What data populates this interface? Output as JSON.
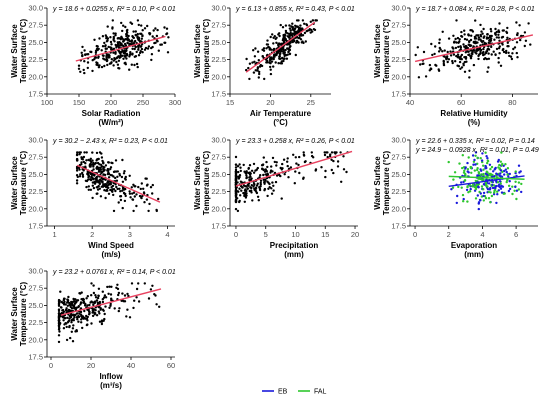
{
  "chart_data": [
    {
      "type": "scatter",
      "xlabel": [
        "Solar Radiation",
        "(W/m²)"
      ],
      "ylabel": [
        "Water Surface",
        "Temperature (°C)"
      ],
      "xlim": [
        100,
        300
      ],
      "xticks": [
        "100",
        "150",
        "200",
        "250",
        "300"
      ],
      "xtick_values": [
        100,
        150,
        200,
        250,
        300
      ],
      "ylim": [
        17.5,
        30
      ],
      "yticks": [
        "17.5",
        "20.0",
        "22.5",
        "25.0",
        "27.5",
        "30.0"
      ],
      "ytick_values": [
        17.5,
        20,
        22.5,
        25,
        27.5,
        30
      ],
      "annotations": [
        "y = 18.6 + 0.0255 x, R² = 0.10, P < 0.01"
      ],
      "annotation_colors": [
        "#000000"
      ],
      "fits": [
        {
          "intercept": 18.6,
          "slope": 0.0255,
          "color": "#e8415f",
          "x_range": [
            145,
            285
          ]
        }
      ],
      "cloud": {
        "x_range": [
          150,
          290
        ],
        "x_center": 215,
        "spread": 1.4,
        "n": 330
      }
    },
    {
      "type": "scatter",
      "xlabel": [
        "Air Temperature",
        "(°C)"
      ],
      "ylabel": [
        "Water Surface",
        "Temperature (°C)"
      ],
      "xlim": [
        15,
        27.5
      ],
      "xticks": [
        "15",
        "20",
        "25"
      ],
      "xtick_values": [
        15,
        20,
        25
      ],
      "ylim": [
        17.5,
        30
      ],
      "yticks": [
        "17.5",
        "20.0",
        "22.5",
        "25.0",
        "27.5",
        "30.0"
      ],
      "ytick_values": [
        17.5,
        20,
        22.5,
        25,
        27.5,
        30
      ],
      "annotations": [
        "y = 6.13 + 0.855 x, R² = 0.43, P < 0.01"
      ],
      "annotation_colors": [
        "#000000"
      ],
      "fits": [
        {
          "intercept": 6.13,
          "slope": 0.855,
          "color": "#e8415f",
          "x_range": [
            17,
            25.5
          ]
        }
      ],
      "cloud": {
        "x_range": [
          17,
          26
        ],
        "x_center": 22,
        "spread": 1.1,
        "n": 330
      }
    },
    {
      "type": "scatter",
      "xlabel": [
        "Relative Humidity",
        "(%)"
      ],
      "ylabel": [
        "Water Surface",
        "Temperature (°C)"
      ],
      "xlim": [
        40,
        90
      ],
      "xticks": [
        "40",
        "60",
        "80"
      ],
      "xtick_values": [
        40,
        60,
        80
      ],
      "ylim": [
        17.5,
        30
      ],
      "yticks": [
        "17.5",
        "20.0",
        "22.5",
        "25.0",
        "27.5",
        "30.0"
      ],
      "ytick_values": [
        17.5,
        20,
        22.5,
        25,
        27.5,
        30
      ],
      "annotations": [
        "y = 18.7 + 0.084 x, R² = 0.28, P < 0.01"
      ],
      "annotation_colors": [
        "#000000"
      ],
      "fits": [
        {
          "intercept": 18.7,
          "slope": 0.084,
          "color": "#e8415f",
          "x_range": [
            42,
            88
          ]
        }
      ],
      "cloud": {
        "x_range": [
          42,
          88
        ],
        "x_center": 68,
        "spread": 1.4,
        "n": 330
      }
    },
    {
      "type": "scatter",
      "xlabel": [
        "Wind Speed",
        "(m/s)"
      ],
      "ylabel": [
        "Water Surface",
        "Temperature (°C)"
      ],
      "xlim": [
        0.8,
        4.2
      ],
      "xticks": [
        "1",
        "2",
        "3",
        "4"
      ],
      "xtick_values": [
        1,
        2,
        3,
        4
      ],
      "ylim": [
        17.5,
        30
      ],
      "yticks": [
        "17.5",
        "20.0",
        "22.5",
        "25.0",
        "27.5",
        "30.0"
      ],
      "ytick_values": [
        17.5,
        20,
        22.5,
        25,
        27.5,
        30
      ],
      "annotations": [
        "y = 30.2 − 2.43 x, R² = 0.23, P < 0.01"
      ],
      "annotation_colors": [
        "#000000"
      ],
      "fits": [
        {
          "intercept": 30.2,
          "slope": -2.43,
          "color": "#e8415f",
          "x_range": [
            1.6,
            3.8
          ]
        }
      ],
      "cloud": {
        "x_range": [
          1.6,
          3.8
        ],
        "x_center": 2.2,
        "spread": 1.4,
        "n": 330
      }
    },
    {
      "type": "scatter",
      "xlabel": [
        "Precipitation",
        "(mm)"
      ],
      "ylabel": [
        "Water Surface",
        "Temperature (°C)"
      ],
      "xlim": [
        -1,
        20.5
      ],
      "xticks": [
        "0",
        "5",
        "10",
        "15",
        "20"
      ],
      "xtick_values": [
        0,
        5,
        10,
        15,
        20
      ],
      "ylim": [
        17.5,
        30
      ],
      "yticks": [
        "17.5",
        "20.0",
        "22.5",
        "25.0",
        "27.5",
        "30.0"
      ],
      "ytick_values": [
        17.5,
        20,
        22.5,
        25,
        27.5,
        30
      ],
      "annotations": [
        "y = 23.3 + 0.258 x, R² = 0.26, P < 0.01"
      ],
      "annotation_colors": [
        "#000000"
      ],
      "fits": [
        {
          "intercept": 23.3,
          "slope": 0.258,
          "color": "#e8415f",
          "x_range": [
            0,
            19.5
          ]
        }
      ],
      "cloud": {
        "x_range": [
          0,
          19
        ],
        "x_center": 2,
        "spread": 1.4,
        "n": 330
      }
    },
    {
      "type": "scatter",
      "xlabel": [
        "Evaporation",
        "(mm)"
      ],
      "ylabel": [
        "Water Surface",
        "Temperature (°C)"
      ],
      "xlim": [
        -0.3,
        7.3
      ],
      "xticks": [
        "0",
        "2",
        "4",
        "6"
      ],
      "xtick_values": [
        0,
        2,
        4,
        6
      ],
      "ylim": [
        17.5,
        30
      ],
      "yticks": [
        "17.5",
        "20.0",
        "22.5",
        "25.0",
        "27.5",
        "30.0"
      ],
      "ytick_values": [
        17.5,
        20,
        22.5,
        25,
        27.5,
        30
      ],
      "annotations": [
        "y = 22.6 + 0.335 x, R² = 0.02, P = 0.14",
        "y = 24.9 − 0.0928 x, R² = 0.01, P = 0.49"
      ],
      "annotation_colors": [
        "#1a1adb",
        "#2ec72e"
      ],
      "fits": [
        {
          "intercept": 22.6,
          "slope": 0.335,
          "color": "#1a1adb",
          "x_range": [
            2,
            6.5
          ]
        },
        {
          "intercept": 24.9,
          "slope": -0.0928,
          "color": "#2ec72e",
          "x_range": [
            2,
            6.5
          ]
        }
      ],
      "cloud": {
        "x_range": [
          2,
          6.5
        ],
        "x_center": 4.2,
        "spread": 1.6,
        "n": 320,
        "groups": [
          "#1a1adb",
          "#2ec72e"
        ]
      }
    },
    {
      "type": "scatter",
      "xlabel": [
        "Inflow",
        "(m³/s)"
      ],
      "ylabel": [
        "Water Surface",
        "Temperature (°C)"
      ],
      "xlim": [
        -2,
        62
      ],
      "xticks": [
        "0",
        "20",
        "40",
        "60"
      ],
      "xtick_values": [
        0,
        20,
        40,
        60
      ],
      "ylim": [
        17.5,
        30
      ],
      "yticks": [
        "17.5",
        "20.0",
        "22.5",
        "25.0",
        "27.5",
        "30.0"
      ],
      "ytick_values": [
        17.5,
        20,
        22.5,
        25,
        27.5,
        30
      ],
      "annotations": [
        "y = 23.2 + 0.0761 x, R² = 0.14, P < 0.01"
      ],
      "annotation_colors": [
        "#000000"
      ],
      "fits": [
        {
          "intercept": 23.2,
          "slope": 0.0761,
          "color": "#e8415f",
          "x_range": [
            5,
            55
          ]
        }
      ],
      "cloud": {
        "x_range": [
          4,
          55
        ],
        "x_center": 12,
        "spread": 1.4,
        "n": 330
      }
    }
  ],
  "legend": {
    "items": [
      {
        "label": "EB",
        "color": "#1a1adb"
      },
      {
        "label": "FAL",
        "color": "#2ec72e"
      }
    ]
  }
}
